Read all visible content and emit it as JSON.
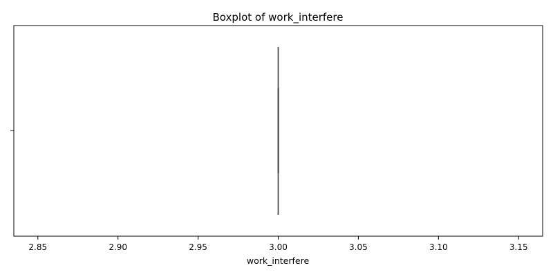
{
  "chart_data": {
    "type": "boxplot",
    "title": "Boxplot of work_interfere",
    "xlabel": "work_interfere",
    "ylabel": "",
    "xlim": [
      2.835,
      3.165
    ],
    "xticks": [
      2.85,
      2.9,
      2.95,
      3.0,
      3.05,
      3.1,
      3.15
    ],
    "xtick_labels": [
      "2.85",
      "2.90",
      "2.95",
      "3.00",
      "3.05",
      "3.10",
      "3.15"
    ],
    "orientation": "horizontal",
    "grid": false,
    "legend": false,
    "series": [
      {
        "min": 3.0,
        "q1": 3.0,
        "median": 3.0,
        "q3": 3.0,
        "max": 3.0,
        "outliers": []
      }
    ],
    "colors": {
      "box_line": "#4c4c4c",
      "axis": "#000000"
    }
  }
}
